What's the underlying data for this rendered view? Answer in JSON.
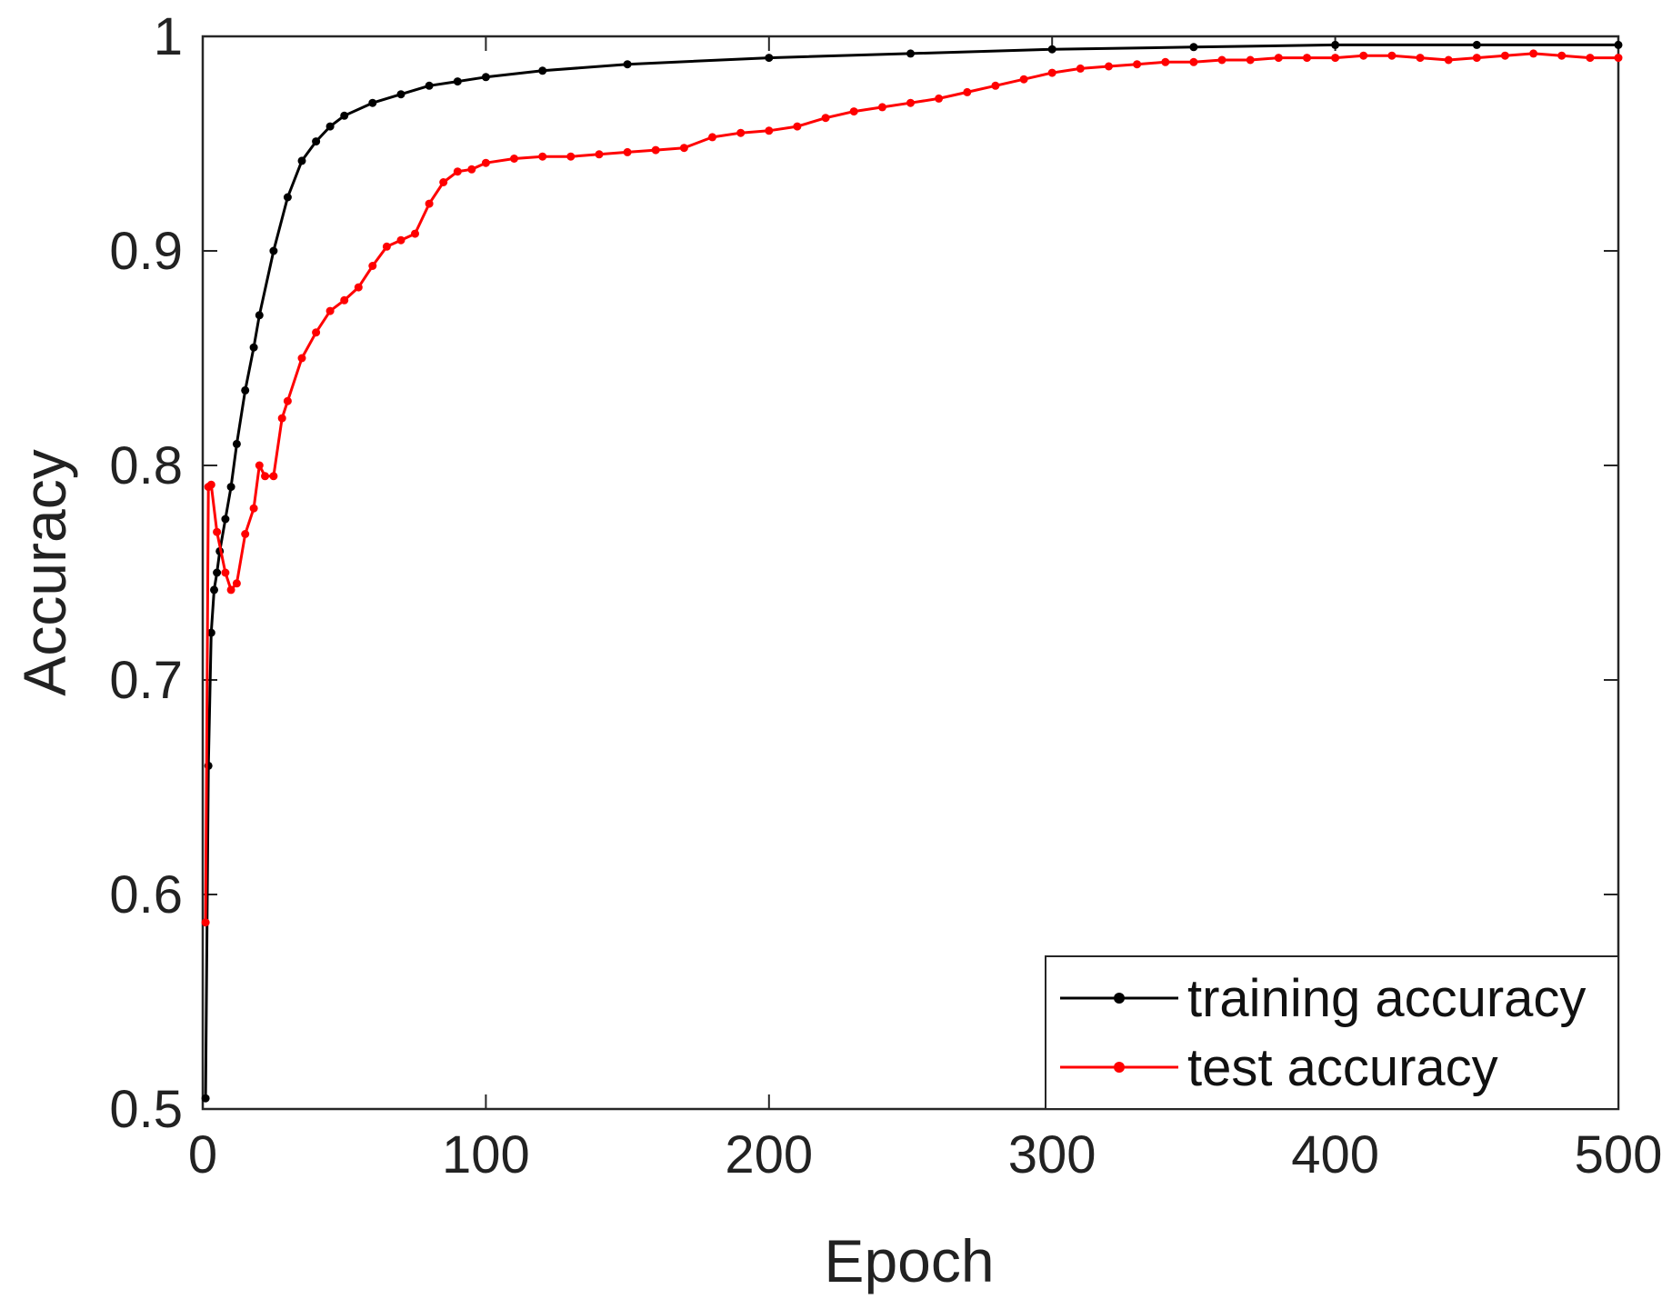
{
  "chart_data": {
    "type": "line",
    "title": "",
    "xlabel": "Epoch",
    "ylabel": "Accuracy",
    "xlim": [
      0,
      500
    ],
    "ylim": [
      0.5,
      1
    ],
    "xticks": [
      0,
      100,
      200,
      300,
      400,
      500
    ],
    "xtick_labels": [
      "0",
      "100",
      "200",
      "300",
      "400",
      "500"
    ],
    "yticks": [
      0.5,
      0.6,
      0.7,
      0.8,
      0.9,
      1
    ],
    "ytick_labels": [
      "0.5",
      "0.6",
      "0.7",
      "0.8",
      "0.9",
      "1"
    ],
    "grid": false,
    "legend_position": "bottom-right",
    "series": [
      {
        "name": "training accuracy",
        "color": "#000000",
        "marker": "dot",
        "x": [
          1,
          2,
          3,
          4,
          5,
          6,
          8,
          10,
          12,
          15,
          18,
          20,
          25,
          30,
          35,
          40,
          45,
          50,
          60,
          70,
          80,
          90,
          100,
          120,
          150,
          200,
          250,
          300,
          350,
          400,
          450,
          500
        ],
        "y": [
          0.505,
          0.66,
          0.722,
          0.742,
          0.75,
          0.76,
          0.775,
          0.79,
          0.81,
          0.835,
          0.855,
          0.87,
          0.9,
          0.925,
          0.942,
          0.951,
          0.958,
          0.963,
          0.969,
          0.973,
          0.977,
          0.979,
          0.981,
          0.984,
          0.987,
          0.99,
          0.992,
          0.994,
          0.995,
          0.996,
          0.996,
          0.996
        ]
      },
      {
        "name": "test accuracy",
        "color": "#ff0000",
        "marker": "dot",
        "x": [
          1,
          2,
          3,
          5,
          8,
          10,
          12,
          15,
          18,
          20,
          22,
          25,
          28,
          30,
          35,
          40,
          45,
          50,
          55,
          60,
          65,
          70,
          75,
          80,
          85,
          90,
          95,
          100,
          110,
          120,
          130,
          140,
          150,
          160,
          170,
          180,
          190,
          200,
          210,
          220,
          230,
          240,
          250,
          260,
          270,
          280,
          290,
          300,
          310,
          320,
          330,
          340,
          350,
          360,
          370,
          380,
          390,
          400,
          410,
          420,
          430,
          440,
          450,
          460,
          470,
          480,
          490,
          500
        ],
        "y": [
          0.587,
          0.79,
          0.791,
          0.769,
          0.75,
          0.742,
          0.745,
          0.768,
          0.78,
          0.8,
          0.795,
          0.795,
          0.822,
          0.83,
          0.85,
          0.862,
          0.872,
          0.877,
          0.883,
          0.893,
          0.902,
          0.905,
          0.908,
          0.922,
          0.932,
          0.937,
          0.938,
          0.941,
          0.943,
          0.944,
          0.944,
          0.945,
          0.946,
          0.947,
          0.948,
          0.953,
          0.955,
          0.956,
          0.958,
          0.962,
          0.965,
          0.967,
          0.969,
          0.971,
          0.974,
          0.977,
          0.98,
          0.983,
          0.985,
          0.986,
          0.987,
          0.988,
          0.988,
          0.989,
          0.989,
          0.99,
          0.99,
          0.99,
          0.991,
          0.991,
          0.99,
          0.989,
          0.99,
          0.991,
          0.992,
          0.991,
          0.99,
          0.99
        ]
      }
    ]
  }
}
